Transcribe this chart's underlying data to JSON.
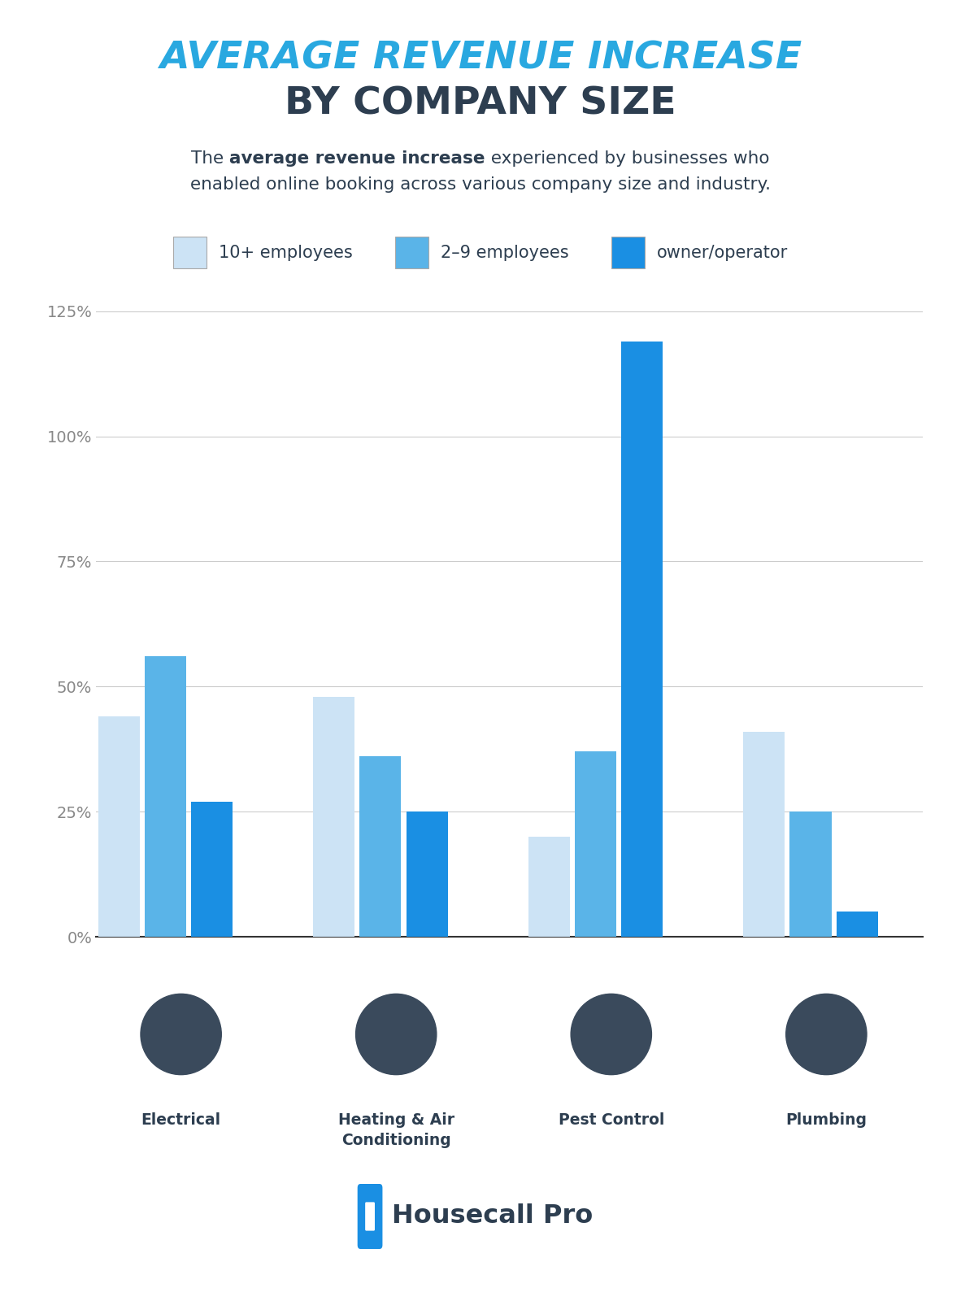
{
  "title_line1": "AVERAGE REVENUE INCREASE",
  "title_line2": "BY COMPANY SIZE",
  "subtitle_parts_line1": [
    [
      "The ",
      false
    ],
    [
      "average revenue increase",
      true
    ],
    [
      " experienced by businesses who",
      false
    ]
  ],
  "subtitle_parts_line2": [
    [
      "enabled online booking across various company size and industry.",
      false
    ]
  ],
  "categories": [
    "Electrical",
    "Heating & Air\nConditioning",
    "Pest Control",
    "Plumbing"
  ],
  "series": {
    "10+ employees": [
      44,
      48,
      20,
      41
    ],
    "2–9 employees": [
      56,
      36,
      37,
      25
    ],
    "owner/operator": [
      27,
      25,
      119,
      5
    ]
  },
  "colors": {
    "10+ employees": "#cce3f5",
    "2–9 employees": "#5ab4e8",
    "owner/operator": "#1a8fe3"
  },
  "ylim": [
    0,
    130
  ],
  "yticks": [
    0,
    25,
    50,
    75,
    100,
    125
  ],
  "ytick_labels": [
    "0%",
    "25%",
    "50%",
    "75%",
    "100%",
    "125%"
  ],
  "background_color": "#ffffff",
  "title_color1": "#29a8e0",
  "title_color2": "#2d3e50",
  "subtitle_color": "#2d3e50",
  "axis_label_color": "#888888",
  "grid_color": "#cccccc",
  "bar_edge_color": "none",
  "icon_bg_color": "#3a4a5c",
  "legend_label_color": "#2d3e50",
  "housecall_color": "#1a8fe3",
  "housecall_text_color": "#2d3e50",
  "housecall_text": "Housecall Pro"
}
